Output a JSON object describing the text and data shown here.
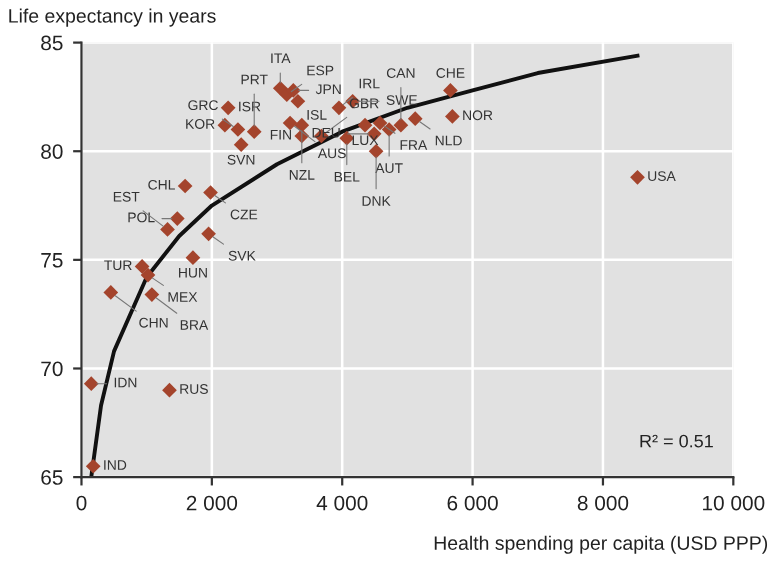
{
  "chart_data": {
    "type": "scatter",
    "xlabel": "Health spending per capita (USD PPP)",
    "ylabel": "Life expectancy in years",
    "xlim": [
      0,
      10000
    ],
    "xticks": [
      0,
      {
        "value": 2000,
        "label": "2 000"
      },
      {
        "value": 4000,
        "label": "4 000"
      },
      {
        "value": 6000,
        "label": "6 000"
      },
      {
        "value": 8000,
        "label": "8 000"
      },
      {
        "value": 10000,
        "label": "10 000"
      }
    ],
    "ylim": [
      65,
      85
    ],
    "yticks": [
      65,
      70,
      75,
      80,
      85
    ],
    "grid": true,
    "marker": "diamond",
    "series": [
      {
        "color": "#a4442c",
        "x": [
          2250,
          2200,
          2400,
          2450,
          2650,
          3050,
          3150,
          3250,
          3320,
          3200,
          3380,
          3380,
          3680,
          3950,
          4070,
          4160,
          4580,
          4720,
          4350,
          4490,
          4900,
          5120,
          5660,
          5690,
          4520,
          8530,
          1590,
          1980,
          1470,
          1320,
          1950,
          1710,
          930,
          1020,
          450,
          1080,
          150,
          1350,
          180
        ],
        "values": [
          82.0,
          81.2,
          81.0,
          80.3,
          80.9,
          82.9,
          82.6,
          82.8,
          82.3,
          81.3,
          81.2,
          80.7,
          80.7,
          82.0,
          80.6,
          82.3,
          81.3,
          81.0,
          81.2,
          80.8,
          81.2,
          81.5,
          82.8,
          81.6,
          80.0,
          78.8,
          78.4,
          78.1,
          76.9,
          76.4,
          76.2,
          75.1,
          74.7,
          74.3,
          73.5,
          73.4,
          69.3,
          69.0,
          65.5
        ]
      },
      {
        "type": "line",
        "color": "#111111",
        "marker": "none",
        "x": [
          150,
          300,
          500,
          1000,
          1500,
          2000,
          3000,
          4000,
          5000,
          6000,
          7000,
          8530
        ],
        "values": [
          65.0,
          68.3,
          70.8,
          74.2,
          76.1,
          77.5,
          79.4,
          80.9,
          82.0,
          82.8,
          83.6,
          84.4
        ]
      }
    ],
    "annotations": [
      {
        "text": "ISR",
        "x": 2250,
        "y": 82.0
      },
      {
        "text": "KOR",
        "x": 2200,
        "y": 81.2
      },
      {
        "text": "GRC",
        "x": 2400,
        "y": 81.0
      },
      {
        "text": "SVN",
        "x": 2450,
        "y": 80.3
      },
      {
        "text": "PRT",
        "x": 2650,
        "y": 80.9
      },
      {
        "text": "ITA",
        "x": 3050,
        "y": 82.9
      },
      {
        "text": "ESP",
        "x": 3150,
        "y": 82.6
      },
      {
        "text": "JPN",
        "x": 3250,
        "y": 82.8
      },
      {
        "text": "ISL",
        "x": 3320,
        "y": 82.3
      },
      {
        "text": "AUS",
        "x": 3200,
        "y": 81.3
      },
      {
        "text": "NZL",
        "x": 3380,
        "y": 81.2
      },
      {
        "text": "FIN",
        "x": 3380,
        "y": 80.7
      },
      {
        "text": "GBR",
        "x": 3680,
        "y": 80.7
      },
      {
        "text": "IRL",
        "x": 3950,
        "y": 82.0
      },
      {
        "text": "BEL",
        "x": 4070,
        "y": 80.6
      },
      {
        "text": "SWE",
        "x": 4160,
        "y": 82.3
      },
      {
        "text": "FRA",
        "x": 4580,
        "y": 81.3
      },
      {
        "text": "AUT",
        "x": 4720,
        "y": 81.0
      },
      {
        "text": "LUX",
        "x": 4350,
        "y": 81.2
      },
      {
        "text": "DEU",
        "x": 4490,
        "y": 80.8
      },
      {
        "text": "CAN",
        "x": 4900,
        "y": 81.2
      },
      {
        "text": "NLD",
        "x": 5120,
        "y": 81.5
      },
      {
        "text": "CHE",
        "x": 5660,
        "y": 82.8
      },
      {
        "text": "NOR",
        "x": 5690,
        "y": 81.6
      },
      {
        "text": "DNK",
        "x": 4520,
        "y": 80.0
      },
      {
        "text": "USA",
        "x": 8530,
        "y": 78.8
      },
      {
        "text": "CHL",
        "x": 1590,
        "y": 78.4
      },
      {
        "text": "CZE",
        "x": 1980,
        "y": 78.1
      },
      {
        "text": "POL",
        "x": 1470,
        "y": 76.9
      },
      {
        "text": "EST",
        "x": 1320,
        "y": 76.4
      },
      {
        "text": "SVK",
        "x": 1950,
        "y": 76.2
      },
      {
        "text": "HUN",
        "x": 1710,
        "y": 75.1
      },
      {
        "text": "TUR",
        "x": 930,
        "y": 74.7
      },
      {
        "text": "MEX",
        "x": 1020,
        "y": 74.3
      },
      {
        "text": "CHN",
        "x": 450,
        "y": 73.5
      },
      {
        "text": "BRA",
        "x": 1080,
        "y": 73.4
      },
      {
        "text": "IDN",
        "x": 150,
        "y": 69.3
      },
      {
        "text": "RUS",
        "x": 1350,
        "y": 69.0
      },
      {
        "text": "IND",
        "x": 180,
        "y": 65.5
      },
      "R² = 0.51"
    ]
  }
}
